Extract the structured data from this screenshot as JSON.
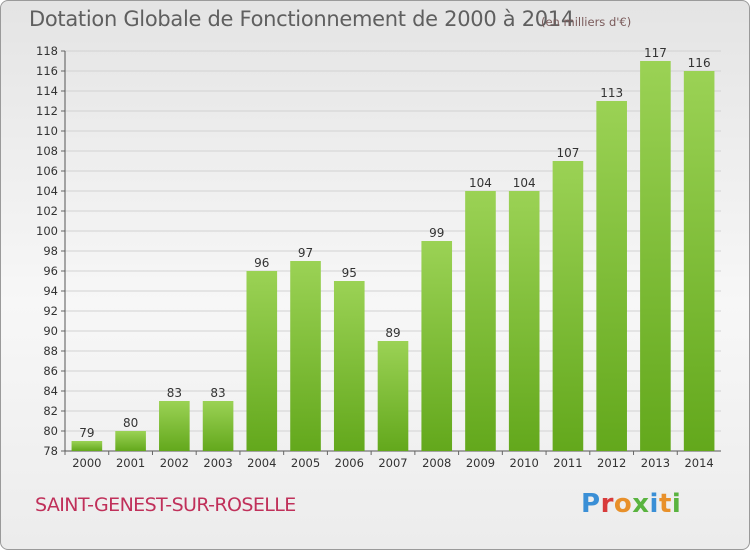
{
  "header": {
    "title": "Dotation Globale de Fonctionnement de 2000 à 2014",
    "unit": "(en milliers d'€)"
  },
  "footer": {
    "commune": "SAINT-GENEST-SUR-ROSELLE",
    "logo_text": "Proxiti"
  },
  "colors": {
    "bar_light": "#9bd255",
    "bar_dark": "#63a81c",
    "grid": "#d2d2d2",
    "commune_text": "#c0305a"
  },
  "chart_data": {
    "type": "bar",
    "title": "Dotation Globale de Fonctionnement de 2000 à 2014",
    "subtitle": "(en milliers d'€)",
    "categories": [
      "2000",
      "2001",
      "2002",
      "2003",
      "2004",
      "2005",
      "2006",
      "2007",
      "2008",
      "2009",
      "2010",
      "2011",
      "2012",
      "2013",
      "2014"
    ],
    "values": [
      79,
      80,
      83,
      83,
      96,
      97,
      95,
      89,
      99,
      104,
      104,
      107,
      113,
      117,
      116
    ],
    "ylim": [
      78,
      118
    ],
    "yticks": [
      78,
      80,
      82,
      84,
      86,
      88,
      90,
      92,
      94,
      96,
      98,
      100,
      102,
      104,
      106,
      108,
      110,
      112,
      114,
      116,
      118
    ],
    "grid": true,
    "data_labels": true
  }
}
